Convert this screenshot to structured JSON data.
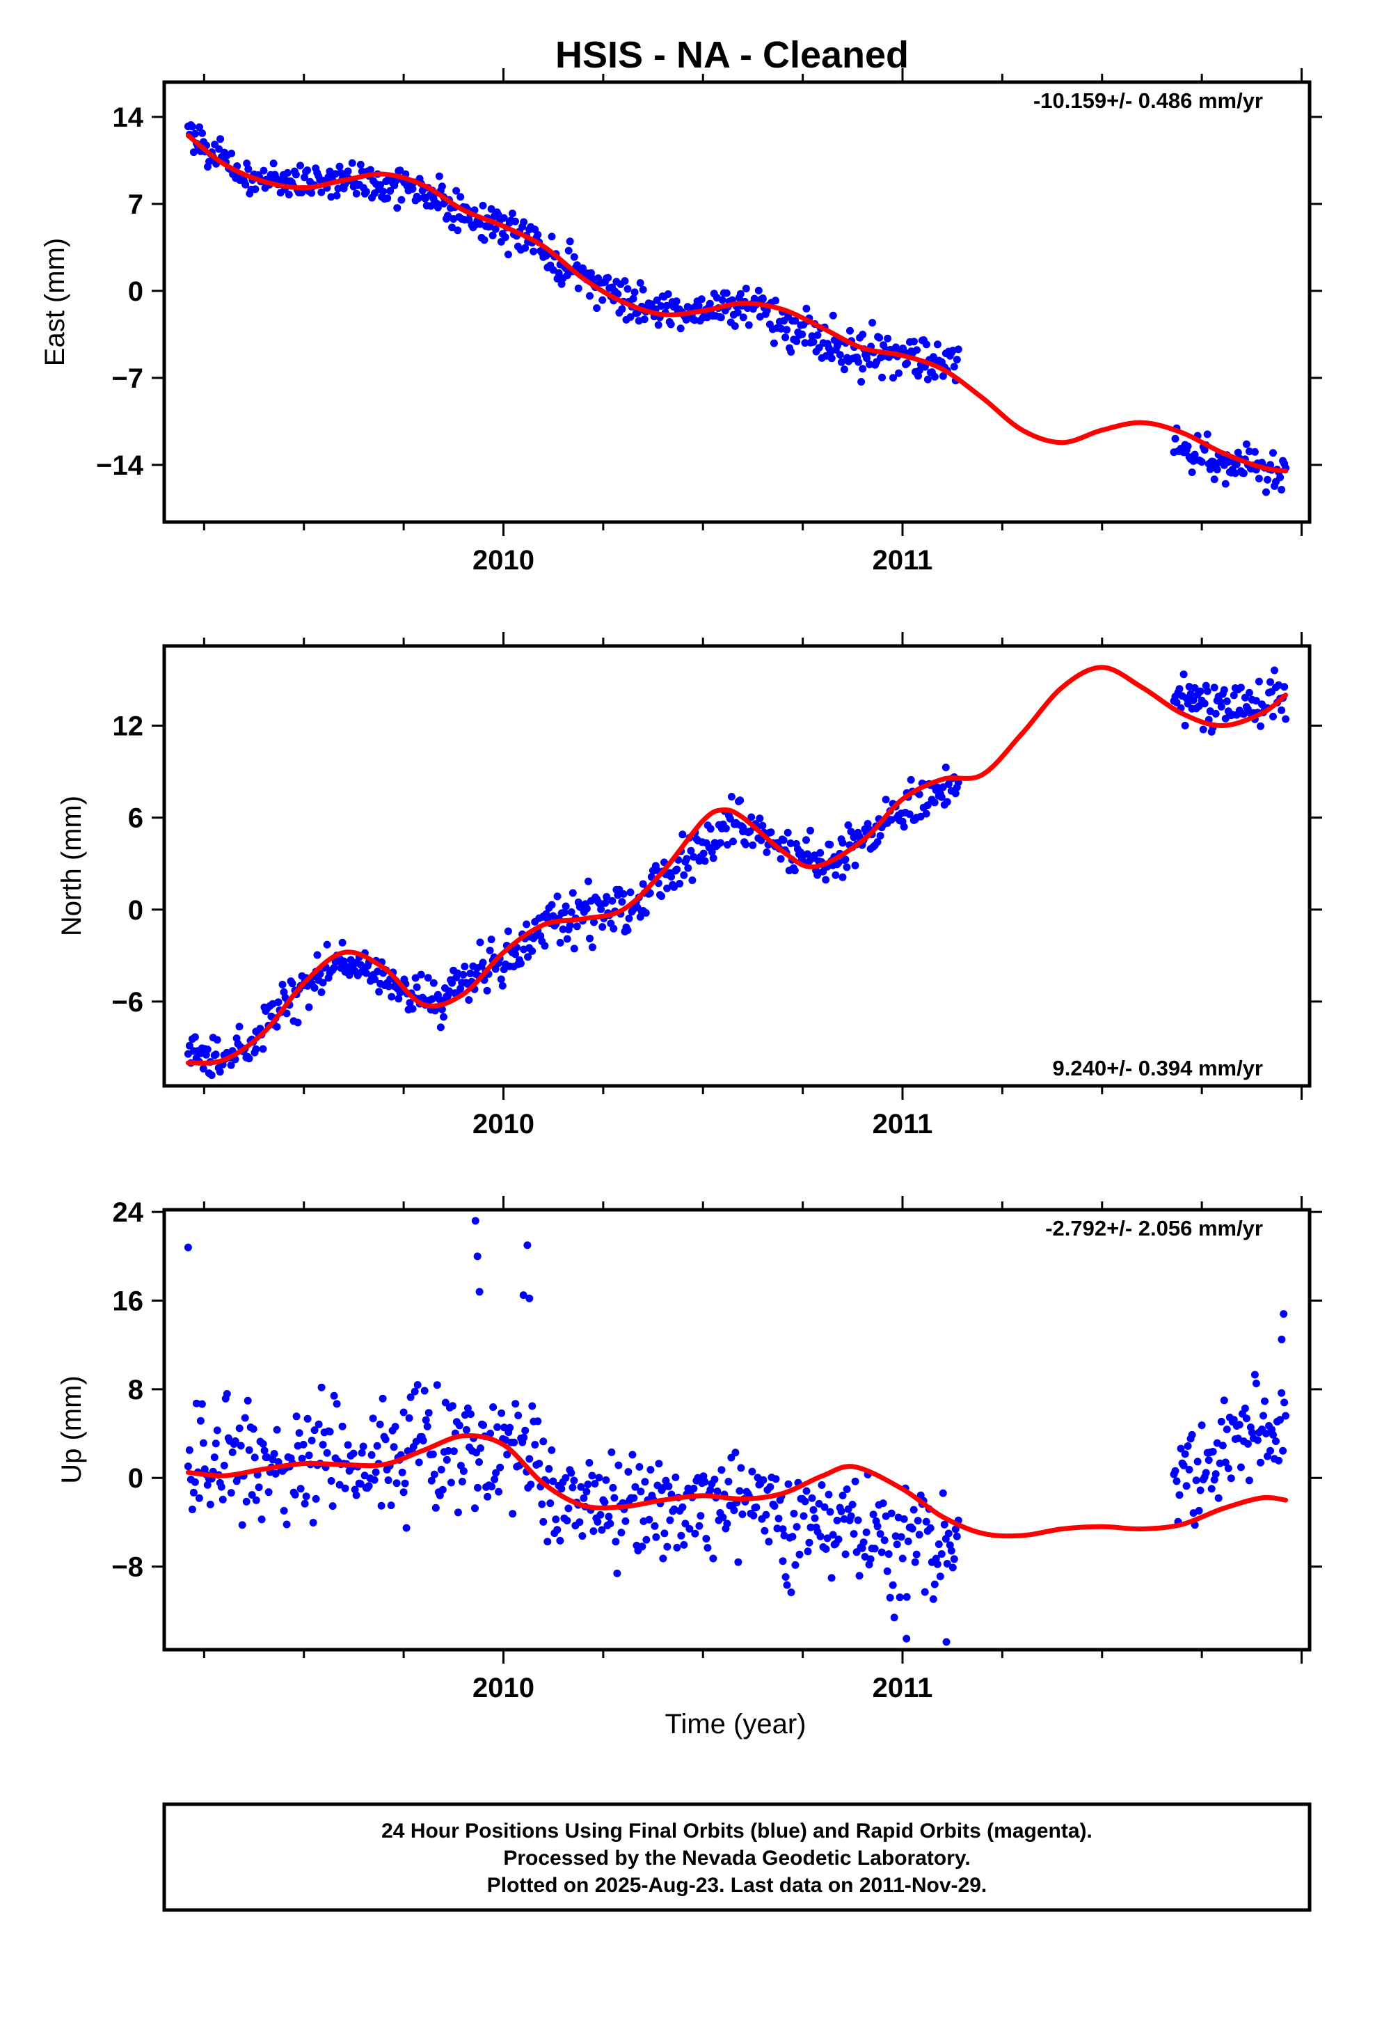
{
  "title": "HSIS  - NA - Cleaned",
  "xlabel": "Time (year)",
  "footer": [
    "24 Hour Positions Using Final Orbits (blue) and Rapid Orbits (magenta).",
    "Processed by the Nevada Geodetic Laboratory.",
    "Plotted on 2025-Aug-23. Last data on 2011-Nov-29."
  ],
  "colors": {
    "final_orbit_points": "#0000ff",
    "model_fit": "#ff0000"
  },
  "chart_data": [
    {
      "type": "scatter",
      "ylabel": "East (mm)",
      "rate_label": "-10.159+/- 0.486 mm/yr",
      "xlim": [
        2009.15,
        2012.02
      ],
      "ylim": [
        -18.6,
        16.8
      ],
      "yticks": [
        14,
        7,
        0,
        -7,
        -14
      ],
      "ytick_labels": [
        "14",
        "7",
        "0",
        "−7",
        "−14"
      ],
      "xticks": [
        2010,
        2011
      ],
      "xtick_labels": [
        "2010",
        "2011"
      ],
      "model": [
        [
          2009.21,
          12.5
        ],
        [
          2009.3,
          10.2
        ],
        [
          2009.4,
          8.8
        ],
        [
          2009.5,
          8.3
        ],
        [
          2009.6,
          8.9
        ],
        [
          2009.7,
          9.4
        ],
        [
          2009.8,
          8.5
        ],
        [
          2009.9,
          6.5
        ],
        [
          2010.0,
          5.2
        ],
        [
          2010.1,
          3.6
        ],
        [
          2010.2,
          1.0
        ],
        [
          2010.3,
          -0.9
        ],
        [
          2010.4,
          -1.9
        ],
        [
          2010.5,
          -1.6
        ],
        [
          2010.6,
          -1.0
        ],
        [
          2010.7,
          -1.5
        ],
        [
          2010.8,
          -3.0
        ],
        [
          2010.9,
          -4.6
        ],
        [
          2011.0,
          -5.2
        ],
        [
          2011.1,
          -6.3
        ],
        [
          2011.2,
          -8.6
        ],
        [
          2011.3,
          -11.2
        ],
        [
          2011.4,
          -12.2
        ],
        [
          2011.5,
          -11.2
        ],
        [
          2011.6,
          -10.6
        ],
        [
          2011.7,
          -11.4
        ],
        [
          2011.8,
          -13.0
        ],
        [
          2011.9,
          -14.2
        ],
        [
          2011.96,
          -14.5
        ]
      ],
      "observations": [
        {
          "t0": 2009.21,
          "t1": 2009.35,
          "v0": 13.0,
          "v1": 9.0,
          "noise": 0.9
        },
        {
          "t0": 2009.35,
          "t1": 2009.6,
          "v0": 9.0,
          "v1": 8.8,
          "noise": 0.9
        },
        {
          "t0": 2009.6,
          "t1": 2009.85,
          "v0": 9.0,
          "v1": 8.0,
          "noise": 1.2
        },
        {
          "t0": 2009.85,
          "t1": 2010.1,
          "v0": 6.5,
          "v1": 4.0,
          "noise": 1.1
        },
        {
          "t0": 2010.1,
          "t1": 2010.35,
          "v0": 3.0,
          "v1": -1.5,
          "noise": 1.2
        },
        {
          "t0": 2010.35,
          "t1": 2010.65,
          "v0": -1.5,
          "v1": -1.2,
          "noise": 1.0
        },
        {
          "t0": 2010.65,
          "t1": 2010.9,
          "v0": -1.5,
          "v1": -5.5,
          "noise": 1.3
        },
        {
          "t0": 2010.9,
          "t1": 2011.14,
          "v0": -4.5,
          "v1": -5.8,
          "noise": 1.3
        },
        {
          "t0": 2011.68,
          "t1": 2011.96,
          "v0": -12.5,
          "v1": -15.0,
          "noise": 1.2
        }
      ]
    },
    {
      "type": "scatter",
      "ylabel": "North (mm)",
      "rate_label": "9.240+/- 0.394 mm/yr",
      "xlim": [
        2009.15,
        2012.02
      ],
      "ylim": [
        -11.5,
        17.2
      ],
      "yticks": [
        12,
        6,
        0,
        -6
      ],
      "ytick_labels": [
        "12",
        "6",
        "0",
        "−6"
      ],
      "xticks": [
        2010,
        2011
      ],
      "xtick_labels": [
        "2010",
        "2011"
      ],
      "model": [
        [
          2009.21,
          -10.0
        ],
        [
          2009.3,
          -9.8
        ],
        [
          2009.4,
          -8.0
        ],
        [
          2009.5,
          -4.8
        ],
        [
          2009.6,
          -2.8
        ],
        [
          2009.7,
          -3.8
        ],
        [
          2009.8,
          -6.2
        ],
        [
          2009.9,
          -5.5
        ],
        [
          2010.0,
          -2.8
        ],
        [
          2010.1,
          -1.0
        ],
        [
          2010.2,
          -0.6
        ],
        [
          2010.3,
          0.0
        ],
        [
          2010.4,
          2.5
        ],
        [
          2010.5,
          5.8
        ],
        [
          2010.55,
          6.5
        ],
        [
          2010.6,
          6.0
        ],
        [
          2010.7,
          3.8
        ],
        [
          2010.78,
          2.8
        ],
        [
          2010.9,
          4.5
        ],
        [
          2011.0,
          7.2
        ],
        [
          2011.1,
          8.5
        ],
        [
          2011.2,
          8.8
        ],
        [
          2011.3,
          11.5
        ],
        [
          2011.4,
          14.5
        ],
        [
          2011.5,
          15.8
        ],
        [
          2011.6,
          14.5
        ],
        [
          2011.7,
          12.8
        ],
        [
          2011.8,
          12.0
        ],
        [
          2011.9,
          12.8
        ],
        [
          2011.96,
          14.0
        ]
      ],
      "observations": [
        {
          "t0": 2009.21,
          "t1": 2009.38,
          "v0": -9.6,
          "v1": -9.0,
          "noise": 0.9
        },
        {
          "t0": 2009.38,
          "t1": 2009.6,
          "v0": -8.0,
          "v1": -3.0,
          "noise": 1.0
        },
        {
          "t0": 2009.6,
          "t1": 2009.85,
          "v0": -3.5,
          "v1": -6.2,
          "noise": 0.9
        },
        {
          "t0": 2009.85,
          "t1": 2010.1,
          "v0": -5.5,
          "v1": -1.5,
          "noise": 1.2
        },
        {
          "t0": 2010.1,
          "t1": 2010.35,
          "v0": -1.0,
          "v1": 0.5,
          "noise": 1.2
        },
        {
          "t0": 2010.35,
          "t1": 2010.6,
          "v0": 1.5,
          "v1": 6.0,
          "noise": 1.1
        },
        {
          "t0": 2010.6,
          "t1": 2010.85,
          "v0": 5.0,
          "v1": 3.0,
          "noise": 1.0
        },
        {
          "t0": 2010.85,
          "t1": 2011.14,
          "v0": 4.0,
          "v1": 8.5,
          "noise": 1.1
        },
        {
          "t0": 2011.68,
          "t1": 2011.96,
          "v0": 13.5,
          "v1": 13.5,
          "noise": 1.3
        }
      ]
    },
    {
      "type": "scatter",
      "ylabel": "Up (mm)",
      "rate_label": "-2.792+/- 2.056 mm/yr",
      "xlim": [
        2009.15,
        2012.02
      ],
      "ylim": [
        -15.5,
        24.2
      ],
      "yticks": [
        24,
        16,
        8,
        0,
        -8
      ],
      "ytick_labels": [
        "24",
        "16",
        "8",
        "0",
        "−8"
      ],
      "xticks": [
        2010,
        2011
      ],
      "xtick_labels": [
        "2010",
        "2011"
      ],
      "model": [
        [
          2009.21,
          0.5
        ],
        [
          2009.3,
          0.2
        ],
        [
          2009.4,
          0.8
        ],
        [
          2009.5,
          1.3
        ],
        [
          2009.6,
          1.2
        ],
        [
          2009.7,
          1.2
        ],
        [
          2009.8,
          2.5
        ],
        [
          2009.9,
          3.8
        ],
        [
          2010.0,
          3.0
        ],
        [
          2010.1,
          -0.5
        ],
        [
          2010.2,
          -2.5
        ],
        [
          2010.3,
          -2.6
        ],
        [
          2010.4,
          -2.0
        ],
        [
          2010.5,
          -1.6
        ],
        [
          2010.6,
          -1.9
        ],
        [
          2010.7,
          -1.4
        ],
        [
          2010.8,
          0.2
        ],
        [
          2010.88,
          1.0
        ],
        [
          2011.0,
          -1.0
        ],
        [
          2011.1,
          -3.5
        ],
        [
          2011.2,
          -5.0
        ],
        [
          2011.3,
          -5.2
        ],
        [
          2011.4,
          -4.6
        ],
        [
          2011.5,
          -4.4
        ],
        [
          2011.6,
          -4.6
        ],
        [
          2011.7,
          -4.2
        ],
        [
          2011.8,
          -2.8
        ],
        [
          2011.9,
          -1.8
        ],
        [
          2011.96,
          -2.0
        ]
      ],
      "observations": [
        {
          "t0": 2009.21,
          "t1": 2009.45,
          "v0": 0.5,
          "v1": 1.0,
          "noise": 3.8
        },
        {
          "t0": 2009.45,
          "t1": 2009.75,
          "v0": 1.5,
          "v1": 2.0,
          "noise": 3.4
        },
        {
          "t0": 2009.75,
          "t1": 2010.1,
          "v0": 2.5,
          "v1": 2.0,
          "noise": 4.0
        },
        {
          "t0": 2010.1,
          "t1": 2010.4,
          "v0": -2.0,
          "v1": -3.0,
          "noise": 3.5
        },
        {
          "t0": 2010.4,
          "t1": 2010.7,
          "v0": -3.0,
          "v1": -2.5,
          "noise": 3.2
        },
        {
          "t0": 2010.7,
          "t1": 2011.14,
          "v0": -4.0,
          "v1": -6.0,
          "noise": 3.8
        },
        {
          "t0": 2011.68,
          "t1": 2011.96,
          "v0": 0.0,
          "v1": 5.0,
          "noise": 3.5
        }
      ],
      "outliers": [
        [
          2009.21,
          20.8
        ],
        [
          2009.93,
          23.2
        ],
        [
          2009.935,
          20.0
        ],
        [
          2009.94,
          16.8
        ],
        [
          2010.06,
          21.0
        ],
        [
          2010.05,
          16.5
        ],
        [
          2010.065,
          16.2
        ],
        [
          2011.01,
          -14.5
        ],
        [
          2011.11,
          -14.8
        ],
        [
          2011.955,
          14.8
        ],
        [
          2011.95,
          12.5
        ]
      ]
    }
  ]
}
